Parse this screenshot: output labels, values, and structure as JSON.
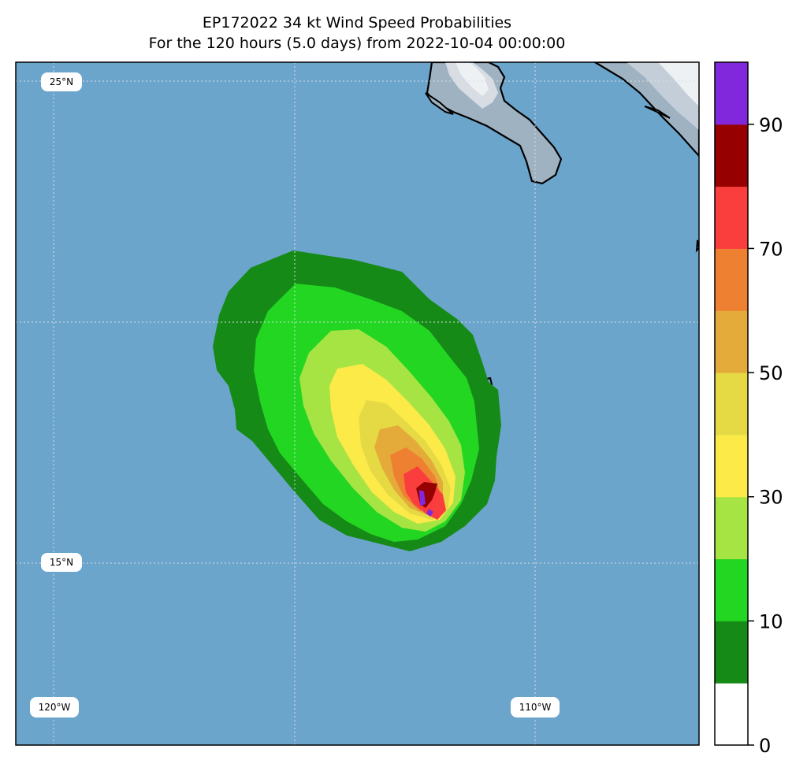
{
  "title": {
    "line1": "EP172022 34 kt Wind Speed Probabilities",
    "line2": "For the 120 hours (5.0 days) from 2022-10-04 00:00:00"
  },
  "map": {
    "gridlabels": {
      "lat_top": "25°N",
      "lat_bottom": "15°N",
      "lon_left": "120°W",
      "lon_right": "110°W"
    },
    "colors": {
      "ocean": "#6ca5cc",
      "land": "#9fb2c2",
      "coast": "#000000"
    }
  },
  "colorbar": {
    "ticks": [
      "0",
      "10",
      "30",
      "50",
      "70",
      "90"
    ],
    "levels": [
      0,
      5,
      10,
      20,
      30,
      40,
      50,
      60,
      70,
      80,
      90,
      100
    ],
    "colors": [
      "#ffffff",
      "#168a16",
      "#22d622",
      "#a6e444",
      "#fbea48",
      "#e6da44",
      "#e4ab3a",
      "#ee8031",
      "#fa3e3e",
      "#960000",
      "#8228dc"
    ]
  }
}
